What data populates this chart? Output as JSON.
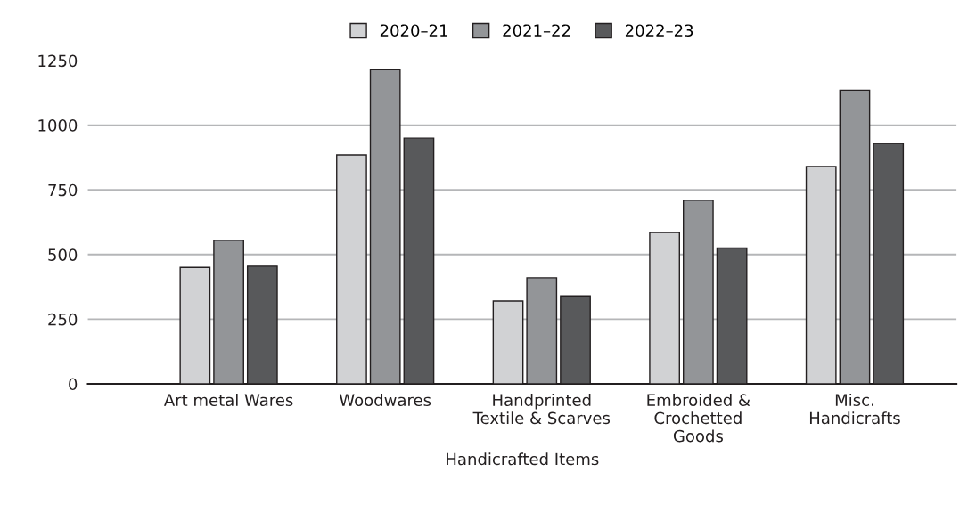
{
  "chart_data": {
    "type": "bar",
    "xlabel": "Handicrafted Items",
    "categories": [
      "Art metal Wares",
      "Woodwares",
      "Handprinted\nTextile & Scarves",
      "Embroided &\nCrochetted\nGoods",
      "Misc.\nHandicrafts"
    ],
    "series": [
      {
        "name": "2020–21",
        "color": "#d1d2d4",
        "values": [
          450,
          885,
          320,
          585,
          840
        ]
      },
      {
        "name": "2021–22",
        "color": "#939598",
        "values": [
          555,
          1215,
          410,
          710,
          1135
        ]
      },
      {
        "name": "2022–23",
        "color": "#58595b",
        "values": [
          455,
          950,
          340,
          525,
          930
        ]
      }
    ],
    "ylim": [
      0,
      1250
    ],
    "yticks": [
      0,
      250,
      500,
      750,
      1000,
      1250
    ],
    "grid": "y",
    "legend": "top"
  }
}
